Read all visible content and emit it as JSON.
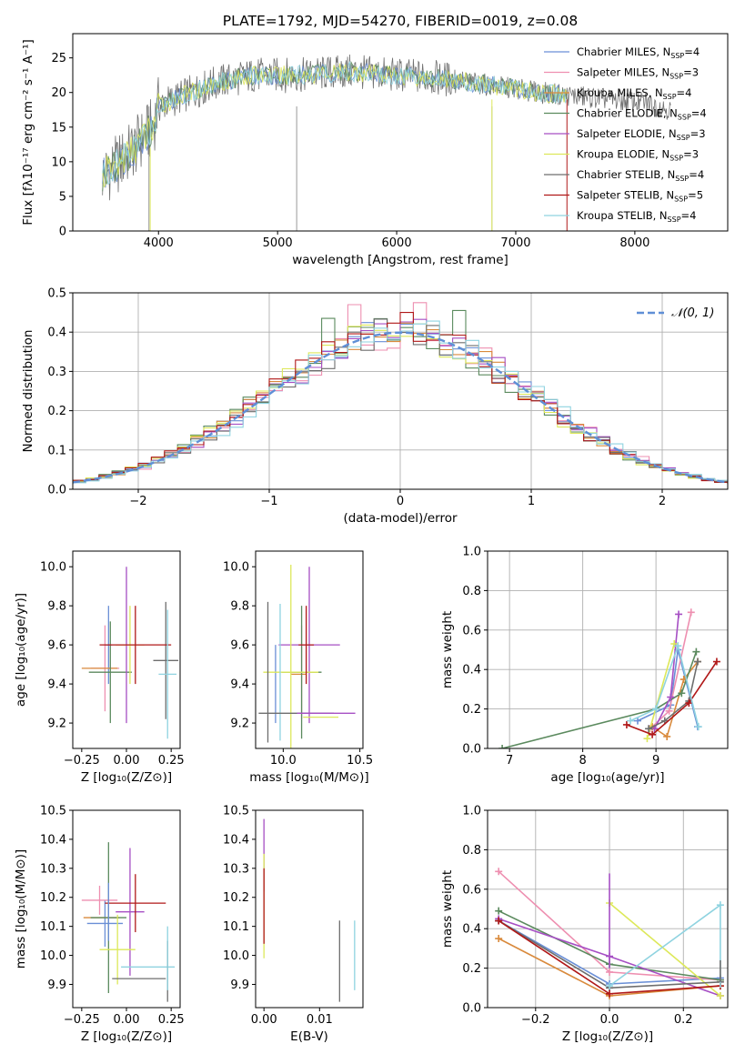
{
  "figure": {
    "title": "PLATE=1792, MJD=54270, FIBERID=0019, z=0.08"
  },
  "palette": {
    "Chabrier MILES": "#6a8fd6",
    "Salpeter MILES": "#ee8fb0",
    "Kroupa MILES": "#d98a3c",
    "Chabrier ELODIE": "#5b8a5e",
    "Salpeter ELODIE": "#a64fc4",
    "Kroupa ELODIE": "#dde85a",
    "Chabrier STELIB": "#6e6e6e",
    "Salpeter STELIB": "#b01818",
    "Kroupa STELIB": "#8fd3e0",
    "gaussian": "#5f8fd6"
  },
  "chart_data": [
    {
      "id": "spectrum",
      "type": "line",
      "xlabel": "wavelength [Angstrom, rest frame]",
      "ylabel": "Flux [fλ10⁻¹⁷ erg cm⁻² s⁻¹ A⁻¹]",
      "xlim": [
        3280,
        8780
      ],
      "ylim": [
        0,
        28.5
      ],
      "xticks": [
        4000,
        5000,
        6000,
        7000,
        8000
      ],
      "yticks": [
        0,
        5,
        10,
        15,
        20,
        25
      ],
      "legend_position": "right",
      "series": [
        {
          "name": "Chabrier MILES, N_SSP=4",
          "label": "Chabrier MILES, N",
          "nssp": "=4"
        },
        {
          "name": "Salpeter MILES, N_SSP=3",
          "label": "Salpeter MILES, N",
          "nssp": "=3"
        },
        {
          "name": "Kroupa MILES, N_SSP=4",
          "label": "Kroupa MILES, N",
          "nssp": "=4"
        },
        {
          "name": "Chabrier ELODIE, N_SSP=4",
          "label": "Chabrier ELODIE, N",
          "nssp": "=4"
        },
        {
          "name": "Salpeter ELODIE, N_SSP=3",
          "label": "Salpeter ELODIE, N",
          "nssp": "=3"
        },
        {
          "name": "Kroupa ELODIE, N_SSP=3",
          "label": "Kroupa ELODIE, N",
          "nssp": "=3"
        },
        {
          "name": "Chabrier STELIB, N_SSP=4",
          "label": "Chabrier STELIB, N",
          "nssp": "=4"
        },
        {
          "name": "Salpeter STELIB, N_SSP=5",
          "label": "Salpeter STELIB, N",
          "nssp": "=5"
        },
        {
          "name": "Kroupa STELIB, N_SSP=4",
          "label": "Kroupa STELIB, N",
          "nssp": "=4"
        }
      ],
      "continuum_points": [
        [
          3530,
          8
        ],
        [
          3650,
          9.5
        ],
        [
          3800,
          12
        ],
        [
          3950,
          15
        ],
        [
          4000,
          18
        ],
        [
          4200,
          19.5
        ],
        [
          4500,
          21.5
        ],
        [
          4800,
          22.5
        ],
        [
          5200,
          22.5
        ],
        [
          5600,
          23
        ],
        [
          6000,
          22.5
        ],
        [
          6400,
          22
        ],
        [
          6800,
          21
        ],
        [
          7200,
          20
        ],
        [
          7500,
          19.5
        ],
        [
          7800,
          19
        ],
        [
          8100,
          18.5
        ],
        [
          8300,
          17.5
        ]
      ],
      "observed_range": [
        3530,
        8300
      ],
      "model_range": [
        3530,
        7430
      ]
    },
    {
      "id": "residuals",
      "type": "histogram",
      "xlabel": "(data-model)/error",
      "ylabel": "Normed distribution",
      "xlim": [
        -2.5,
        2.5
      ],
      "ylim": [
        0,
        0.5
      ],
      "xticks": [
        -2,
        -1,
        0,
        1,
        2
      ],
      "yticks": [
        0.0,
        0.1,
        0.2,
        0.3,
        0.4,
        0.5
      ],
      "legend": "𝒩(0, 1)",
      "bin_width": 0.1,
      "series_offsets": [
        0.02,
        -0.03,
        0.01,
        0.04,
        -0.02,
        0.03,
        -0.01,
        0.02,
        -0.04
      ],
      "peaks": [
        {
          "x": -0.35,
          "y": 0.47,
          "series": 1
        },
        {
          "x": 0.15,
          "y": 0.475,
          "series": 1
        },
        {
          "x": 0.45,
          "y": 0.455,
          "series": 3
        },
        {
          "x": -0.55,
          "y": 0.435,
          "series": 3
        },
        {
          "x": 0.05,
          "y": 0.45,
          "series": 7
        }
      ]
    },
    {
      "id": "age_vs_Z",
      "type": "errorbar",
      "xlabel": "Z [log₁₀(Z/Z⊙)]",
      "ylabel": "age  [log₁₀(age/yr)]",
      "xlim": [
        -0.3,
        0.3
      ],
      "ylim": [
        9.07,
        10.08
      ],
      "xticks": [
        -0.25,
        0.0,
        0.25
      ],
      "yticks": [
        9.2,
        9.4,
        9.6,
        9.8,
        10.0
      ],
      "points": [
        {
          "series": 0,
          "x": -0.1,
          "y": 9.6,
          "xerr": 0.02,
          "yerr": 0.2
        },
        {
          "series": 1,
          "x": -0.12,
          "y": 9.48,
          "xerr": 0.08,
          "yerr": 0.22
        },
        {
          "series": 2,
          "x": -0.15,
          "y": 9.48,
          "xerr": 0.1,
          "yerr": 0.0
        },
        {
          "series": 3,
          "x": -0.09,
          "y": 9.46,
          "xerr": 0.12,
          "yerr": 0.26
        },
        {
          "series": 4,
          "x": 0.0,
          "y": 9.6,
          "xerr": 0.0,
          "yerr": 0.4
        },
        {
          "series": 5,
          "x": 0.02,
          "y": 9.6,
          "xerr": 0.08,
          "yerr": 0.2
        },
        {
          "series": 6,
          "x": 0.22,
          "y": 9.52,
          "xerr": 0.07,
          "yerr": 0.3
        },
        {
          "series": 7,
          "x": 0.05,
          "y": 9.6,
          "xerr": 0.2,
          "yerr": 0.2
        },
        {
          "series": 8,
          "x": 0.23,
          "y": 9.45,
          "xerr": 0.05,
          "yerr": 0.33
        }
      ]
    },
    {
      "id": "age_vs_mass",
      "type": "errorbar",
      "xlabel": "mass [log₁₀(M/M⊙)]",
      "ylabel": "",
      "xlim": [
        9.82,
        10.52
      ],
      "ylim": [
        9.07,
        10.08
      ],
      "xticks": [
        10.0,
        10.5
      ],
      "yticks": [
        9.2,
        9.4,
        9.6,
        9.8,
        10.0
      ],
      "points": [
        {
          "series": 0,
          "x": 9.95,
          "y": 9.4,
          "xerr": 0.0,
          "yerr": 0.2
        },
        {
          "series": 1,
          "x": 10.12,
          "y": 9.46,
          "xerr": 0.03,
          "yerr": 0.24
        },
        {
          "series": 2,
          "x": 10.1,
          "y": 9.45,
          "xerr": 0.05,
          "yerr": 0.0
        },
        {
          "series": 3,
          "x": 10.12,
          "y": 9.46,
          "xerr": 0.13,
          "yerr": 0.34
        },
        {
          "series": 4,
          "x": 10.17,
          "y": 9.6,
          "xerr": 0.2,
          "yerr": 0.4
        },
        {
          "series": 5,
          "x": 10.05,
          "y": 9.46,
          "xerr": 0.18,
          "yerr": 0.55
        },
        {
          "series": 6,
          "x": 9.9,
          "y": 9.46,
          "xerr": 0.0,
          "yerr": 0.36
        },
        {
          "series": 7,
          "x": 10.15,
          "y": 9.6,
          "xerr": 0.05,
          "yerr": 0.2
        },
        {
          "series": 8,
          "x": 9.98,
          "y": 9.46,
          "xerr": 0.0,
          "yerr": 0.35
        }
      ],
      "hbars": [
        {
          "series": 6,
          "y": 9.25,
          "x0": 9.84,
          "x1": 10.33
        },
        {
          "series": 4,
          "y": 9.25,
          "x0": 10.09,
          "x1": 10.47
        },
        {
          "series": 5,
          "y": 9.23,
          "x0": 10.13,
          "x1": 10.36
        }
      ]
    },
    {
      "id": "weight_vs_age",
      "type": "line",
      "xlabel": "age  [log₁₀(age/yr)]",
      "ylabel": "mass weight",
      "xlim": [
        6.7,
        9.98
      ],
      "ylim": [
        0,
        1.0
      ],
      "xticks": [
        7,
        8,
        9
      ],
      "yticks": [
        0.0,
        0.2,
        0.4,
        0.6,
        0.8,
        1.0
      ],
      "series": [
        {
          "series": 0,
          "points": [
            [
              8.75,
              0.14
            ],
            [
              9.2,
              0.22
            ],
            [
              9.3,
              0.5
            ],
            [
              9.57,
              0.11
            ]
          ]
        },
        {
          "series": 1,
          "points": [
            [
              8.92,
              0.1
            ],
            [
              9.18,
              0.19
            ],
            [
              9.48,
              0.69
            ]
          ]
        },
        {
          "series": 2,
          "points": [
            [
              8.95,
              0.11
            ],
            [
              9.15,
              0.06
            ],
            [
              9.38,
              0.35
            ],
            [
              9.57,
              0.44
            ]
          ]
        },
        {
          "series": 3,
          "points": [
            [
              6.9,
              0.0
            ],
            [
              9.0,
              0.2
            ],
            [
              9.35,
              0.28
            ],
            [
              9.55,
              0.49
            ]
          ]
        },
        {
          "series": 4,
          "points": [
            [
              8.98,
              0.1
            ],
            [
              9.2,
              0.26
            ],
            [
              9.31,
              0.68
            ]
          ]
        },
        {
          "series": 5,
          "points": [
            [
              8.88,
              0.05
            ],
            [
              9.25,
              0.53
            ]
          ]
        },
        {
          "series": 6,
          "points": [
            [
              8.9,
              0.1
            ],
            [
              9.12,
              0.14
            ],
            [
              9.45,
              0.24
            ],
            [
              9.57,
              0.44
            ]
          ]
        },
        {
          "series": 7,
          "points": [
            [
              8.6,
              0.12
            ],
            [
              8.95,
              0.07
            ],
            [
              9.45,
              0.23
            ],
            [
              9.83,
              0.44
            ]
          ]
        },
        {
          "series": 8,
          "points": [
            [
              8.65,
              0.14
            ],
            [
              9.0,
              0.2
            ],
            [
              9.3,
              0.52
            ],
            [
              9.58,
              0.11
            ]
          ]
        }
      ]
    },
    {
      "id": "mass_vs_Z",
      "type": "errorbar",
      "xlabel": "Z [log₁₀(Z/Z⊙)]",
      "ylabel": "mass [log₁₀(M/M⊙)]",
      "xlim": [
        -0.3,
        0.3
      ],
      "ylim": [
        9.82,
        10.5
      ],
      "xticks": [
        -0.25,
        0.0,
        0.25
      ],
      "yticks": [
        9.9,
        10.0,
        10.1,
        10.2,
        10.3,
        10.4,
        10.5
      ],
      "points": [
        {
          "series": 0,
          "x": -0.12,
          "y": 10.11,
          "xerr": 0.1,
          "yerr": 0.08
        },
        {
          "series": 1,
          "x": -0.15,
          "y": 10.19,
          "xerr": 0.1,
          "yerr": 0.05
        },
        {
          "series": 2,
          "x": -0.14,
          "y": 10.13,
          "xerr": 0.1,
          "yerr": 0.0
        },
        {
          "series": 3,
          "x": -0.1,
          "y": 10.13,
          "xerr": 0.1,
          "yerr": 0.26
        },
        {
          "series": 4,
          "x": 0.02,
          "y": 10.15,
          "xerr": 0.08,
          "yerr": 0.22
        },
        {
          "series": 5,
          "x": -0.05,
          "y": 10.02,
          "xerr": 0.1,
          "yerr": 0.12
        },
        {
          "series": 6,
          "x": 0.07,
          "y": 9.92,
          "xerr": 0.15,
          "yerr": 0.0
        },
        {
          "series": 7,
          "x": 0.05,
          "y": 10.18,
          "xerr": 0.17,
          "yerr": 0.1
        },
        {
          "series": 8,
          "x": 0.12,
          "y": 9.96,
          "xerr": 0.15,
          "yerr": 0.0
        }
      ],
      "vbars": [
        {
          "series": 6,
          "x": 0.23,
          "y0": 9.84,
          "y1": 10.05
        },
        {
          "series": 8,
          "x": 0.23,
          "y0": 9.88,
          "y1": 10.1
        },
        {
          "series": 0,
          "x": -0.1,
          "y0": 10.05,
          "y1": 10.25
        }
      ]
    },
    {
      "id": "mass_vs_ebv",
      "type": "errorbar",
      "xlabel": "E(B-V)",
      "ylabel": "",
      "xlim": [
        -0.0015,
        0.0178
      ],
      "ylim": [
        9.82,
        10.5
      ],
      "xticks": [
        0.0,
        0.01
      ],
      "yticks": [
        9.9,
        10.0,
        10.1,
        10.2,
        10.3,
        10.4,
        10.5
      ],
      "vbars": [
        {
          "series": 4,
          "x": 0.0,
          "y0": 10.22,
          "y1": 10.47
        },
        {
          "series": 5,
          "x": 0.0,
          "y0": 9.99,
          "y1": 10.35
        },
        {
          "series": 7,
          "x": 0.0,
          "y0": 10.04,
          "y1": 10.3
        },
        {
          "series": 6,
          "x": 0.0136,
          "y0": 9.84,
          "y1": 10.12
        },
        {
          "series": 8,
          "x": 0.0163,
          "y0": 9.88,
          "y1": 10.12
        }
      ]
    },
    {
      "id": "weight_vs_Z",
      "type": "line",
      "xlabel": "Z [log₁₀(Z/Z⊙)]",
      "ylabel": "mass weight",
      "xlim": [
        -0.33,
        0.32
      ],
      "ylim": [
        0,
        1.0
      ],
      "xticks": [
        -0.2,
        0.0,
        0.2
      ],
      "yticks": [
        0.0,
        0.2,
        0.4,
        0.6,
        0.8,
        1.0
      ],
      "series": [
        {
          "series": 0,
          "points": [
            [
              -0.3,
              0.44
            ],
            [
              0.0,
              0.12
            ],
            [
              0.3,
              0.15
            ]
          ]
        },
        {
          "series": 1,
          "points": [
            [
              -0.3,
              0.69
            ],
            [
              0.0,
              0.18
            ],
            [
              0.3,
              0.14
            ]
          ]
        },
        {
          "series": 2,
          "points": [
            [
              -0.3,
              0.35
            ],
            [
              0.0,
              0.06
            ],
            [
              0.3,
              0.11
            ]
          ]
        },
        {
          "series": 3,
          "points": [
            [
              -0.3,
              0.49
            ],
            [
              0.0,
              0.22
            ],
            [
              0.3,
              0.14
            ]
          ]
        },
        {
          "series": 4,
          "points": [
            [
              -0.3,
              0.45
            ],
            [
              0.0,
              0.26
            ],
            [
              0.3,
              0.06
            ]
          ]
        },
        {
          "series": 5,
          "points": [
            [
              0.0,
              0.53
            ],
            [
              0.3,
              0.06
            ]
          ]
        },
        {
          "series": 6,
          "points": [
            [
              -0.3,
              0.44
            ],
            [
              0.0,
              0.1
            ],
            [
              0.3,
              0.13
            ]
          ]
        },
        {
          "series": 7,
          "points": [
            [
              -0.3,
              0.44
            ],
            [
              0.0,
              0.07
            ],
            [
              0.3,
              0.11
            ]
          ]
        },
        {
          "series": 8,
          "points": [
            [
              0.0,
              0.11
            ],
            [
              0.3,
              0.52
            ]
          ]
        }
      ],
      "vlines": [
        {
          "series": 4,
          "x": 0.0,
          "y0": 0.2,
          "y1": 0.68
        },
        {
          "series": 8,
          "x": 0.3,
          "y0": 0.1,
          "y1": 0.52
        },
        {
          "series": 6,
          "x": 0.3,
          "y0": 0.13,
          "y1": 0.24
        }
      ]
    }
  ]
}
